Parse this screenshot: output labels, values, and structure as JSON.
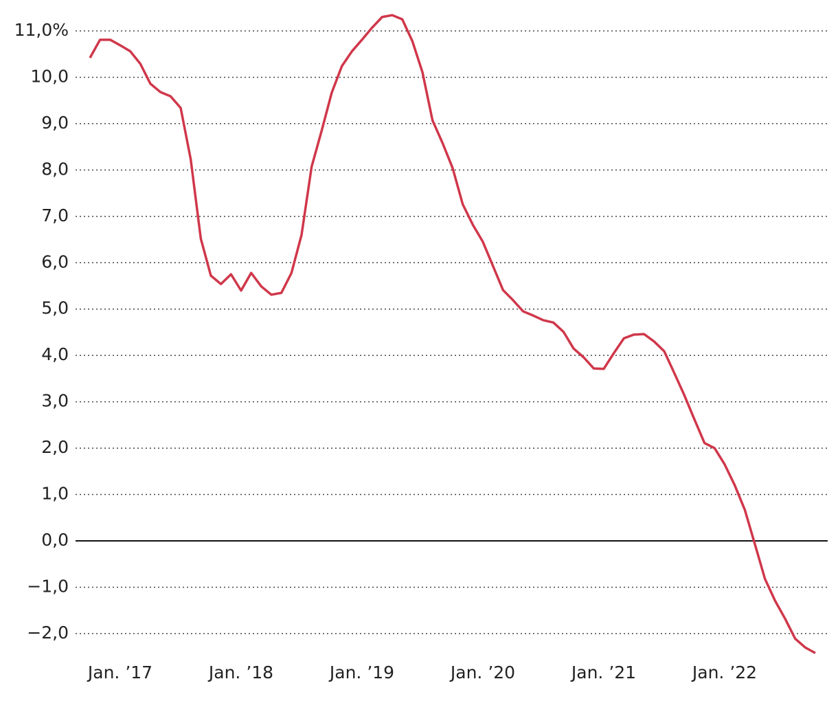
{
  "chart_data": {
    "type": "line",
    "x": [
      "2016-10",
      "2016-11",
      "2016-12",
      "2017-01",
      "2017-02",
      "2017-03",
      "2017-04",
      "2017-05",
      "2017-06",
      "2017-07",
      "2017-08",
      "2017-09",
      "2017-10",
      "2017-11",
      "2017-12",
      "2018-01",
      "2018-02",
      "2018-03",
      "2018-04",
      "2018-05",
      "2018-06",
      "2018-07",
      "2018-08",
      "2018-09",
      "2018-10",
      "2018-11",
      "2018-12",
      "2019-01",
      "2019-02",
      "2019-03",
      "2019-04",
      "2019-05",
      "2019-06",
      "2019-07",
      "2019-08",
      "2019-09",
      "2019-10",
      "2019-11",
      "2019-12",
      "2020-01",
      "2020-02",
      "2020-03",
      "2020-04",
      "2020-05",
      "2020-06",
      "2020-07",
      "2020-08",
      "2020-09",
      "2020-10",
      "2020-11",
      "2020-12",
      "2021-01",
      "2021-02",
      "2021-03",
      "2021-04",
      "2021-05",
      "2021-06",
      "2021-07",
      "2021-08",
      "2021-09",
      "2021-10",
      "2021-11",
      "2021-12",
      "2022-01",
      "2022-02",
      "2022-03",
      "2022-04",
      "2022-05",
      "2022-06",
      "2022-07",
      "2022-08",
      "2022-09",
      "2022-10"
    ],
    "series": [
      {
        "color": "#d0374a",
        "values": [
          10.42,
          10.81,
          10.81,
          10.69,
          10.56,
          10.29,
          9.86,
          9.68,
          9.59,
          9.34,
          8.23,
          6.52,
          5.72,
          5.54,
          5.75,
          5.4,
          5.78,
          5.49,
          5.31,
          5.35,
          5.78,
          6.6,
          8.07,
          8.85,
          9.67,
          10.24,
          10.56,
          10.81,
          11.07,
          11.3,
          11.34,
          11.25,
          10.78,
          10.11,
          9.07,
          8.58,
          8.04,
          7.26,
          6.82,
          6.45,
          5.93,
          5.41,
          5.19,
          4.95,
          4.86,
          4.76,
          4.71,
          4.51,
          4.15,
          3.96,
          3.72,
          3.71,
          4.05,
          4.37,
          4.45,
          4.46,
          4.3,
          4.09,
          3.62,
          3.14,
          2.62,
          2.11,
          2.0,
          1.65,
          1.2,
          0.67,
          -0.07,
          -0.82,
          -1.29,
          -1.68,
          -2.11,
          -2.3,
          -2.42
        ]
      }
    ],
    "ylim": [
      -2.5,
      11.3
    ],
    "yticks": [
      {
        "value": -2,
        "label": "−2,0"
      },
      {
        "value": -1,
        "label": "−1,0"
      },
      {
        "value": 0,
        "label": "0,0"
      },
      {
        "value": 1,
        "label": "1,0"
      },
      {
        "value": 2,
        "label": "2,0"
      },
      {
        "value": 3,
        "label": "3,0"
      },
      {
        "value": 4,
        "label": "4,0"
      },
      {
        "value": 5,
        "label": "5,0"
      },
      {
        "value": 6,
        "label": "6,0"
      },
      {
        "value": 7,
        "label": "7,0"
      },
      {
        "value": 8,
        "label": "8,0"
      },
      {
        "value": 9,
        "label": "9,0"
      },
      {
        "value": 10,
        "label": "10,0"
      },
      {
        "value": 11,
        "label": "11,0%"
      }
    ],
    "xticks": [
      {
        "value": "2017-01",
        "label": "Jan. ’17"
      },
      {
        "value": "2018-01",
        "label": "Jan. ’18"
      },
      {
        "value": "2019-01",
        "label": "Jan. ’19"
      },
      {
        "value": "2020-01",
        "label": "Jan. ’20"
      },
      {
        "value": "2021-01",
        "label": "Jan. ’21"
      },
      {
        "value": "2022-01",
        "label": "Jan. ’22"
      }
    ],
    "grid": true
  }
}
